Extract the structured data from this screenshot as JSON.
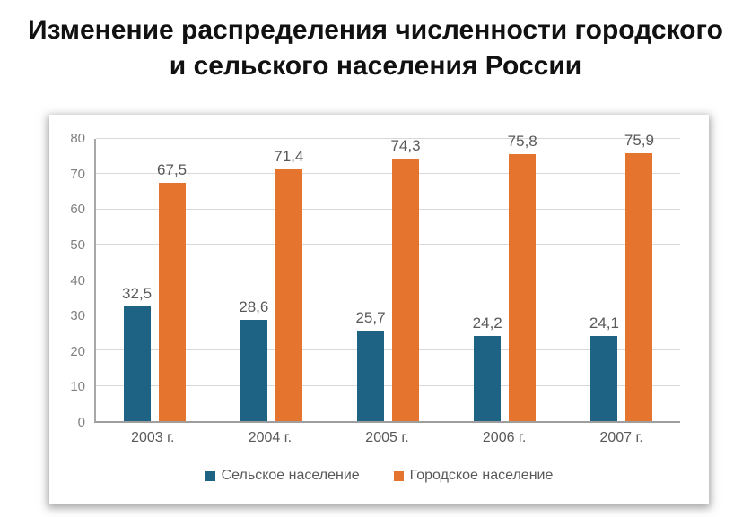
{
  "page": {
    "title": "Изменение распределения численности городского и сельского населения России"
  },
  "chart_data": {
    "type": "bar",
    "title": "Изменение распределения численности городского и сельского населения России",
    "categories": [
      "2003 г.",
      "2004 г.",
      "2005 г.",
      "2006 г.",
      "2007 г."
    ],
    "series": [
      {
        "name": "Сельское население",
        "color": "#1e6383",
        "values": [
          32.5,
          28.6,
          25.7,
          24.2,
          24.1
        ],
        "labels": [
          "32,5",
          "28,6",
          "25,7",
          "24,2",
          "24,1"
        ]
      },
      {
        "name": "Городское население",
        "color": "#e5742f",
        "values": [
          67.5,
          71.4,
          74.3,
          75.8,
          75.9
        ],
        "labels": [
          "67,5",
          "71,4",
          "74,3",
          "75,8",
          "75,9"
        ]
      }
    ],
    "ylim": [
      0,
      80
    ],
    "yticks": [
      0,
      10,
      20,
      30,
      40,
      50,
      60,
      70,
      80
    ],
    "grid": true,
    "legend_position": "bottom",
    "decimal_separator": ","
  }
}
